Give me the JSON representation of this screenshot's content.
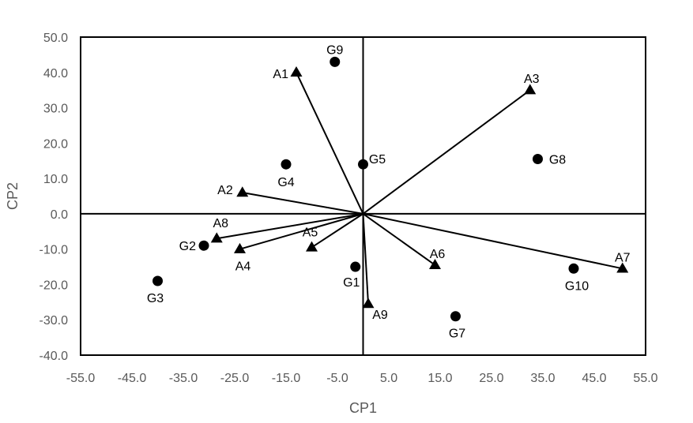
{
  "chart_data": {
    "type": "scatter",
    "xlabel": "CP1",
    "ylabel": "CP2",
    "xlim": [
      -55,
      55
    ],
    "ylim": [
      -40,
      50
    ],
    "xticks": [
      "-55.0",
      "-45.0",
      "-35.0",
      "-25.0",
      "-15.0",
      "-5.0",
      "5.0",
      "15.0",
      "25.0",
      "35.0",
      "45.0",
      "55.0"
    ],
    "yticks": [
      "50.0",
      "40.0",
      "30.0",
      "20.0",
      "10.0",
      "0.0",
      "-10.0",
      "-20.0",
      "-30.0",
      "-40.0"
    ],
    "grid": false,
    "colors": {
      "marker": "#000000",
      "axis": "#000000",
      "tick_text": "#595959"
    },
    "series": [
      {
        "marker": "triangle",
        "vectors_from_origin": true,
        "points": [
          {
            "label": "A1",
            "x": -13.0,
            "y": 40.0
          },
          {
            "label": "A2",
            "x": -23.5,
            "y": 6.0
          },
          {
            "label": "A3",
            "x": 32.5,
            "y": 35.0
          },
          {
            "label": "A4",
            "x": -24.0,
            "y": -10.0
          },
          {
            "label": "A5",
            "x": -10.0,
            "y": -9.5
          },
          {
            "label": "A6",
            "x": 14.0,
            "y": -14.5
          },
          {
            "label": "A7",
            "x": 50.5,
            "y": -15.5
          },
          {
            "label": "A8",
            "x": -28.5,
            "y": -7.0
          },
          {
            "label": "A9",
            "x": 1.0,
            "y": -25.5
          }
        ]
      },
      {
        "marker": "circle",
        "vectors_from_origin": false,
        "points": [
          {
            "label": "G1",
            "x": -1.5,
            "y": -15.0
          },
          {
            "label": "G2",
            "x": -31.0,
            "y": -9.0
          },
          {
            "label": "G3",
            "x": -40.0,
            "y": -19.0
          },
          {
            "label": "G4",
            "x": -15.0,
            "y": 14.0
          },
          {
            "label": "G5",
            "x": 0.0,
            "y": 14.0
          },
          {
            "label": "G7",
            "x": 18.0,
            "y": -29.0
          },
          {
            "label": "G8",
            "x": 34.0,
            "y": 15.5
          },
          {
            "label": "G9",
            "x": -5.5,
            "y": 43.0
          },
          {
            "label": "G10",
            "x": 41.0,
            "y": -15.5
          }
        ]
      }
    ]
  }
}
